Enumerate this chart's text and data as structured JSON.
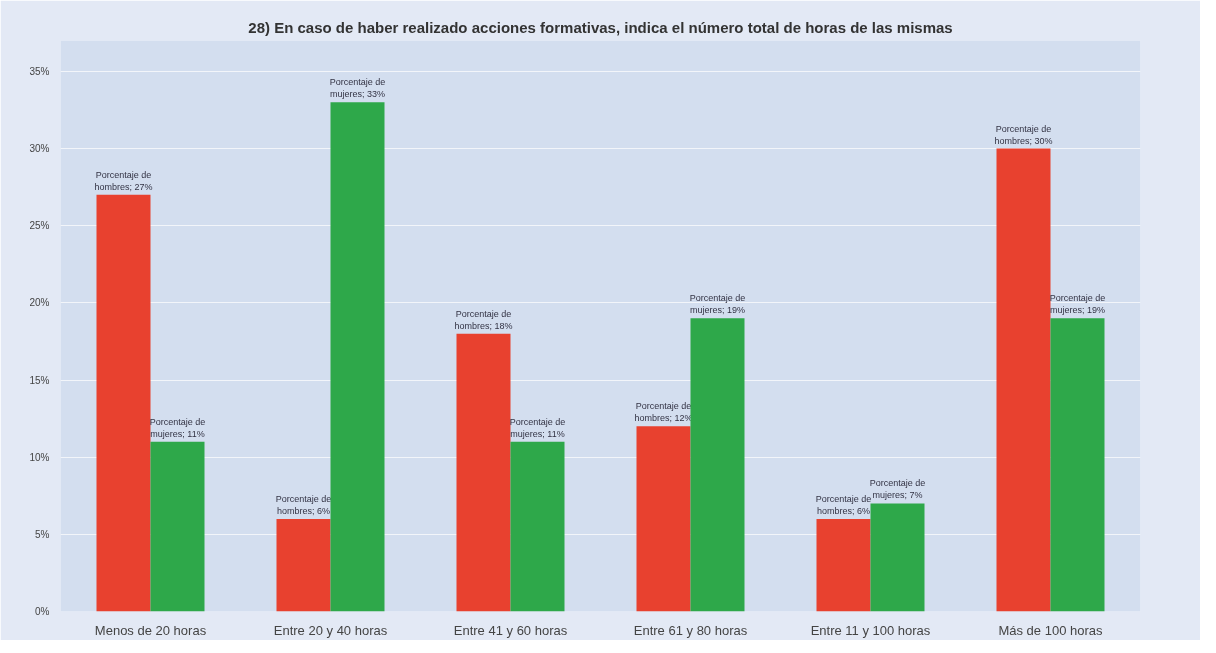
{
  "chart_data": {
    "type": "bar",
    "title": "28) En caso de haber realizado acciones formativas, indica el número total de horas de las mismas",
    "categories": [
      "Menos de 20 horas",
      "Entre 20 y 40 horas",
      "Entre 41 y 60 horas",
      "Entre 61 y 80 horas",
      "Entre 11 y 100 horas",
      "Más de 100 horas"
    ],
    "series": [
      {
        "color": "#e8412f",
        "values": [
          27,
          6,
          18,
          12,
          6,
          30
        ],
        "value_labels": [
          "Porcentaje de hombres; 27%",
          "Porcentaje de hombres; 6%",
          "Porcentaje de hombres; 18%",
          "Porcentaje de hombres; 12%",
          "Porcentaje de hombres; 6%",
          "Porcentaje de hombres; 30%"
        ]
      },
      {
        "color": "#2ea84a",
        "values": [
          11,
          33,
          11,
          19,
          7,
          19
        ],
        "value_labels": [
          "Porcentaje de mujeres; 11%",
          "Porcentaje de mujeres; 33%",
          "Porcentaje de mujeres; 11%",
          "Porcentaje de mujeres; 19%",
          "Porcentaje de mujeres; 7%",
          "Porcentaje de mujeres; 19%"
        ]
      }
    ],
    "ylim": [
      0,
      37
    ],
    "yticks": [
      {
        "value": 0,
        "label": "0%"
      },
      {
        "value": 5,
        "label": "5%"
      },
      {
        "value": 10,
        "label": "10%"
      },
      {
        "value": 15,
        "label": "15%"
      },
      {
        "value": 20,
        "label": "20%"
      },
      {
        "value": 25,
        "label": "25%"
      },
      {
        "value": 30,
        "label": "30%"
      },
      {
        "value": 35,
        "label": "35%"
      }
    ],
    "grid": "y",
    "legend": false
  }
}
